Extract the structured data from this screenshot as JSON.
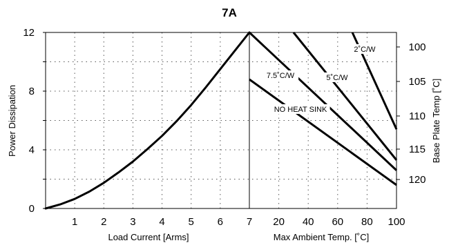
{
  "chart_data": {
    "type": "line",
    "title": "7A",
    "xlabel_left": "Load Current  [Arms]",
    "xlabel_right": "Max Ambient Temp. [˚C]",
    "ylabel_left": "Power Dissipation",
    "ylabel_right": "Base Plate Temp [˚C]",
    "grid": true,
    "left_panel": {
      "xlim": [
        0,
        7
      ],
      "ylim": [
        0,
        12
      ],
      "x_ticks": [
        "1",
        "2",
        "3",
        "4",
        "5",
        "6",
        "7"
      ],
      "y_ticks": [
        "0",
        "4",
        "8",
        "12"
      ],
      "series": [
        {
          "x": [
            0,
            0.5,
            1,
            1.5,
            2,
            2.5,
            3,
            3.5,
            4,
            4.5,
            5,
            5.5,
            6,
            6.5,
            7
          ],
          "y": [
            0,
            0.28,
            0.65,
            1.15,
            1.75,
            2.45,
            3.2,
            4.05,
            4.95,
            5.95,
            7.05,
            8.25,
            9.5,
            10.75,
            12
          ]
        }
      ]
    },
    "right_panel": {
      "xlim": [
        0,
        100
      ],
      "x_ticks": [
        "20",
        "40",
        "60",
        "80",
        "100"
      ],
      "y_ticks": [
        "100",
        "105",
        "110",
        "115",
        "120"
      ],
      "series": [
        {
          "label": "7.5˚C/W",
          "x": [
            0,
            100
          ],
          "y": [
            12,
            2.6
          ]
        },
        {
          "label": "5˚C/W",
          "x": [
            30,
            100
          ],
          "y": [
            12,
            3.3
          ]
        },
        {
          "label": "2˚C/W",
          "x": [
            70,
            100
          ],
          "y": [
            12,
            5.4
          ]
        },
        {
          "label": "NO HEAT SINK",
          "x": [
            0,
            100
          ],
          "y": [
            8.8,
            1.6
          ]
        }
      ]
    }
  }
}
